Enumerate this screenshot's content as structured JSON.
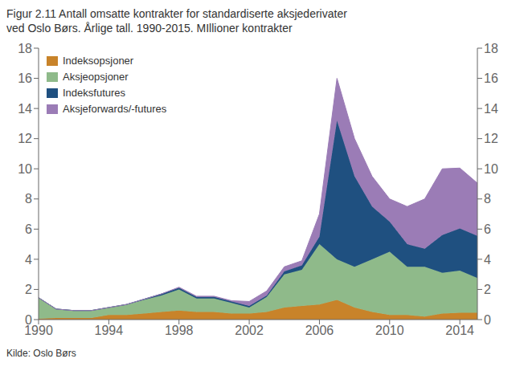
{
  "chart_data": {
    "type": "area",
    "stacked": true,
    "title": "Figur 2.11 Antall omsatte kontrakter for standardiserte aksjederivater",
    "subtitle": "ved Oslo Børs. Årlige tall.  1990-2015. MIllioner kontrakter",
    "annotations": [
      "Kilde:  Oslo Børs"
    ],
    "x": [
      1990,
      1991,
      1992,
      1993,
      1994,
      1995,
      1996,
      1997,
      1998,
      1999,
      2000,
      2001,
      2002,
      2003,
      2004,
      2005,
      2006,
      2007,
      2008,
      2009,
      2010,
      2011,
      2012,
      2013,
      2014,
      2015
    ],
    "series": [
      {
        "name": "Indeksopsjoner",
        "color": "#c8832a",
        "values": [
          0.05,
          0.1,
          0.1,
          0.1,
          0.3,
          0.3,
          0.4,
          0.5,
          0.6,
          0.5,
          0.5,
          0.4,
          0.4,
          0.5,
          0.8,
          0.9,
          1.0,
          1.3,
          0.8,
          0.5,
          0.3,
          0.3,
          0.2,
          0.4,
          0.45,
          0.45
        ]
      },
      {
        "name": "Aksjeopsjoner",
        "color": "#8fba8a",
        "values": [
          1.4,
          0.6,
          0.5,
          0.5,
          0.5,
          0.7,
          0.9,
          1.1,
          1.4,
          0.9,
          0.9,
          0.7,
          0.4,
          1.0,
          2.2,
          2.4,
          4.0,
          2.7,
          2.7,
          3.5,
          4.2,
          3.2,
          3.3,
          2.7,
          2.8,
          2.3
        ]
      },
      {
        "name": "Indeksfutures",
        "color": "#1f5080",
        "values": [
          0.0,
          0.0,
          0.0,
          0.0,
          0.0,
          0.0,
          0.05,
          0.1,
          0.1,
          0.1,
          0.1,
          0.1,
          0.1,
          0.1,
          0.2,
          0.3,
          0.5,
          9.2,
          6.0,
          3.5,
          2.0,
          1.5,
          1.2,
          2.5,
          2.8,
          2.8
        ]
      },
      {
        "name": "Aksjeforwards/-futures",
        "color": "#9b7cb6",
        "values": [
          0.0,
          0.0,
          0.0,
          0.0,
          0.0,
          0.0,
          0.0,
          0.0,
          0.05,
          0.05,
          0.05,
          0.05,
          0.3,
          0.3,
          0.3,
          0.3,
          1.5,
          2.8,
          2.5,
          2.0,
          1.5,
          2.5,
          3.3,
          4.4,
          4.0,
          3.5
        ]
      }
    ],
    "xlim": [
      1990,
      2015
    ],
    "xticks": [
      1990,
      1994,
      1998,
      2002,
      2006,
      2010,
      2014
    ],
    "ylim": [
      0,
      18
    ],
    "yticks": [
      0,
      2,
      4,
      6,
      8,
      10,
      12,
      14,
      16,
      18
    ],
    "y2lim": [
      0,
      18
    ],
    "y2ticks": [
      0,
      2,
      4,
      6,
      8,
      10,
      12,
      14,
      16,
      18
    ],
    "grid": false,
    "legend": "upper left"
  }
}
